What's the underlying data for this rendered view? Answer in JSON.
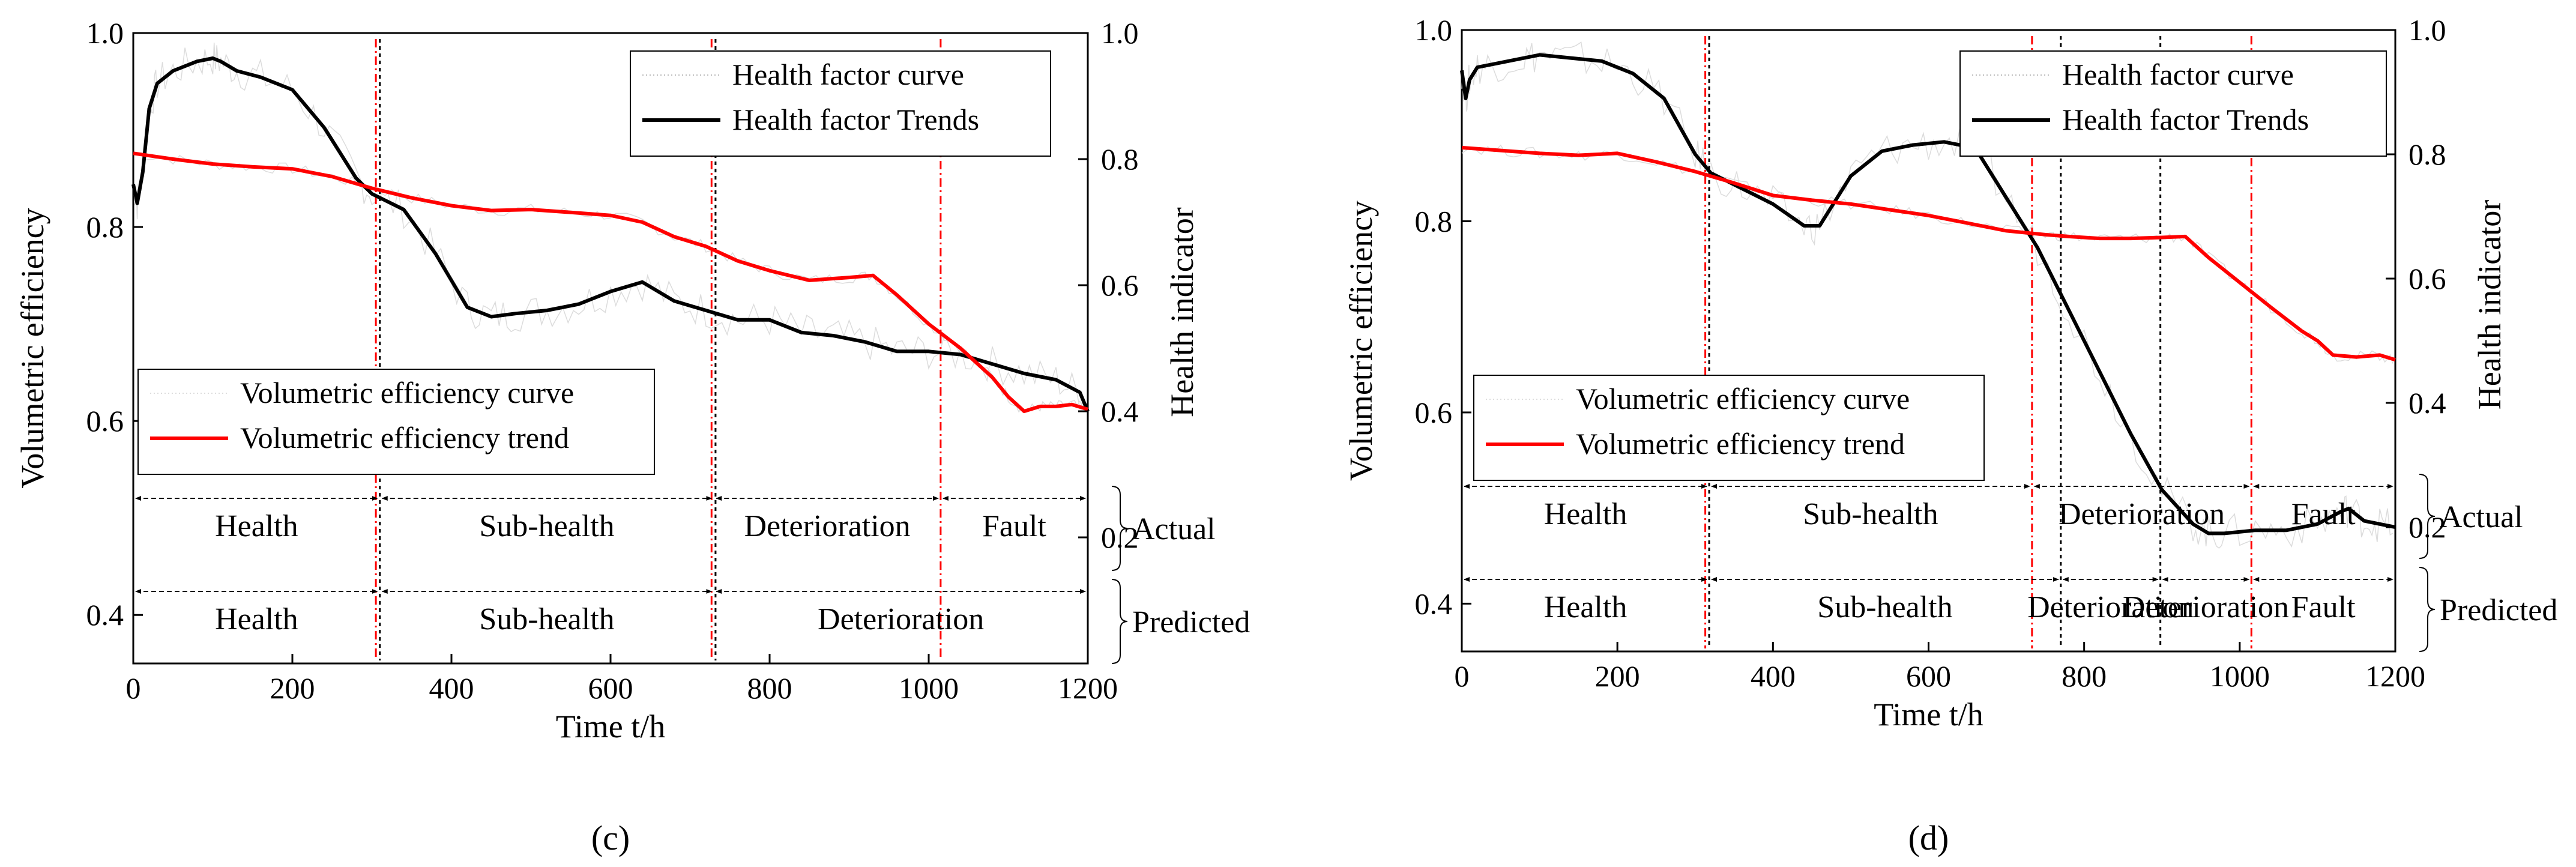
{
  "chart_data": [
    {
      "panel_label": "(c)",
      "type": "line",
      "xlabel": "Time t/h",
      "ylabel": "Volumetric efficiency",
      "y2label": "Health indicator",
      "xlim": [
        0,
        1200
      ],
      "ylim": [
        0.35,
        1.0
      ],
      "y2lim": [
        0.0,
        1.0
      ],
      "x_ticks": [
        "0",
        "200",
        "400",
        "600",
        "800",
        "1000",
        "1200"
      ],
      "y_ticks": [
        "0.4",
        "0.6",
        "0.8",
        "1.0"
      ],
      "y2_ticks": [
        "0.2",
        "0.4",
        "0.6",
        "0.8",
        "1.0"
      ],
      "legend_top": [
        "Health factor curve",
        "Health factor Trends"
      ],
      "legend_bottom": [
        "Volumetric efficiency curve",
        "Volumetric efficiency trend"
      ],
      "series": [
        {
          "name": "Health factor Trends",
          "axis": "right",
          "color": "#000000",
          "x": [
            0,
            5,
            12,
            20,
            30,
            50,
            80,
            100,
            110,
            130,
            160,
            200,
            240,
            280,
            300,
            340,
            380,
            420,
            450,
            480,
            520,
            560,
            600,
            640,
            680,
            720,
            760,
            800,
            840,
            880,
            920,
            960,
            1000,
            1040,
            1080,
            1120,
            1160,
            1190,
            1200
          ],
          "values": [
            0.76,
            0.73,
            0.78,
            0.88,
            0.92,
            0.94,
            0.955,
            0.96,
            0.955,
            0.94,
            0.93,
            0.91,
            0.85,
            0.77,
            0.745,
            0.72,
            0.65,
            0.565,
            0.55,
            0.555,
            0.56,
            0.57,
            0.59,
            0.605,
            0.575,
            0.56,
            0.545,
            0.545,
            0.525,
            0.52,
            0.51,
            0.495,
            0.495,
            0.49,
            0.475,
            0.46,
            0.45,
            0.43,
            0.4
          ]
        },
        {
          "name": "Volumetric efficiency trend",
          "axis": "left",
          "color": "#ff0000",
          "x": [
            0,
            50,
            100,
            150,
            200,
            250,
            300,
            350,
            400,
            450,
            500,
            550,
            600,
            640,
            680,
            720,
            760,
            800,
            850,
            900,
            930,
            960,
            1000,
            1040,
            1080,
            1100,
            1120,
            1140,
            1160,
            1180,
            1200
          ],
          "values": [
            0.876,
            0.87,
            0.865,
            0.862,
            0.86,
            0.852,
            0.84,
            0.83,
            0.822,
            0.817,
            0.818,
            0.815,
            0.812,
            0.805,
            0.79,
            0.78,
            0.765,
            0.755,
            0.745,
            0.748,
            0.75,
            0.73,
            0.7,
            0.675,
            0.645,
            0.625,
            0.61,
            0.615,
            0.615,
            0.617,
            0.612
          ]
        }
      ],
      "vlines": [
        {
          "x": 305,
          "color": "#ff0000"
        },
        {
          "x": 310,
          "color": "#000000"
        },
        {
          "x": 727,
          "color": "#ff0000"
        },
        {
          "x": 732,
          "color": "#000000"
        },
        {
          "x": 1015,
          "color": "#ff0000"
        }
      ],
      "rows": [
        {
          "title": "Actual",
          "boundaries": [
            0,
            310,
            730,
            1015,
            1200
          ],
          "labels": [
            "Health",
            "Sub-health",
            "Deterioration",
            "Fault"
          ]
        },
        {
          "title": "Predicted",
          "boundaries": [
            0,
            310,
            730,
            1200
          ],
          "labels": [
            "Health",
            "Sub-health",
            "Deterioration"
          ]
        }
      ]
    },
    {
      "panel_label": "(d)",
      "type": "line",
      "xlabel": "Time t/h",
      "ylabel": "Volumetric efficiency",
      "y2label": "Health indicator",
      "xlim": [
        0,
        1200
      ],
      "ylim": [
        0.35,
        1.0
      ],
      "y2lim": [
        0.0,
        1.0
      ],
      "x_ticks": [
        "0",
        "200",
        "400",
        "600",
        "800",
        "1000",
        "1200"
      ],
      "y_ticks": [
        "0.4",
        "0.6",
        "0.8",
        "1.0"
      ],
      "y2_ticks": [
        "0.2",
        "0.4",
        "0.6",
        "0.8",
        "1.0"
      ],
      "legend_top": [
        "Health factor curve",
        "Health factor Trends"
      ],
      "legend_bottom": [
        "Volumetric efficiency curve",
        "Volumetric efficiency trend"
      ],
      "series": [
        {
          "name": "Health factor Trends",
          "axis": "right",
          "color": "#000000",
          "x": [
            0,
            5,
            10,
            20,
            40,
            80,
            100,
            140,
            180,
            220,
            260,
            300,
            320,
            360,
            400,
            440,
            460,
            500,
            540,
            580,
            620,
            660,
            700,
            740,
            780,
            820,
            860,
            900,
            940,
            960,
            980,
            1020,
            1060,
            1100,
            1130,
            1140,
            1160,
            1180,
            1200
          ],
          "values": [
            0.935,
            0.89,
            0.92,
            0.94,
            0.945,
            0.955,
            0.96,
            0.955,
            0.95,
            0.93,
            0.89,
            0.8,
            0.77,
            0.745,
            0.72,
            0.685,
            0.685,
            0.765,
            0.805,
            0.815,
            0.82,
            0.81,
            0.73,
            0.65,
            0.55,
            0.45,
            0.35,
            0.26,
            0.205,
            0.19,
            0.19,
            0.195,
            0.195,
            0.205,
            0.225,
            0.23,
            0.21,
            0.205,
            0.2
          ]
        },
        {
          "name": "Volumetric efficiency trend",
          "axis": "left",
          "color": "#ff0000",
          "x": [
            0,
            50,
            100,
            150,
            200,
            250,
            300,
            350,
            400,
            450,
            500,
            550,
            600,
            650,
            700,
            750,
            780,
            820,
            860,
            900,
            930,
            960,
            1000,
            1040,
            1080,
            1100,
            1120,
            1150,
            1180,
            1200
          ],
          "values": [
            0.877,
            0.874,
            0.871,
            0.869,
            0.871,
            0.862,
            0.852,
            0.84,
            0.827,
            0.822,
            0.818,
            0.812,
            0.806,
            0.798,
            0.79,
            0.786,
            0.784,
            0.782,
            0.782,
            0.783,
            0.784,
            0.762,
            0.736,
            0.71,
            0.685,
            0.675,
            0.66,
            0.658,
            0.66,
            0.655
          ]
        }
      ],
      "vlines": [
        {
          "x": 313,
          "color": "#ff0000"
        },
        {
          "x": 318,
          "color": "#000000"
        },
        {
          "x": 733,
          "color": "#ff0000"
        },
        {
          "x": 770,
          "color": "#000000"
        },
        {
          "x": 898,
          "color": "#000000"
        },
        {
          "x": 1015,
          "color": "#ff0000"
        }
      ],
      "rows": [
        {
          "title": "Actual",
          "boundaries": [
            0,
            318,
            733,
            1015,
            1200
          ],
          "labels": [
            "Health",
            "Sub-health",
            "Deterioration",
            "Fault"
          ]
        },
        {
          "title": "Predicted",
          "boundaries": [
            0,
            318,
            770,
            898,
            1015,
            1200
          ],
          "labels": [
            "Health",
            "Sub-health",
            "Deterioration",
            "Deterioration",
            "Fault"
          ]
        }
      ]
    }
  ]
}
